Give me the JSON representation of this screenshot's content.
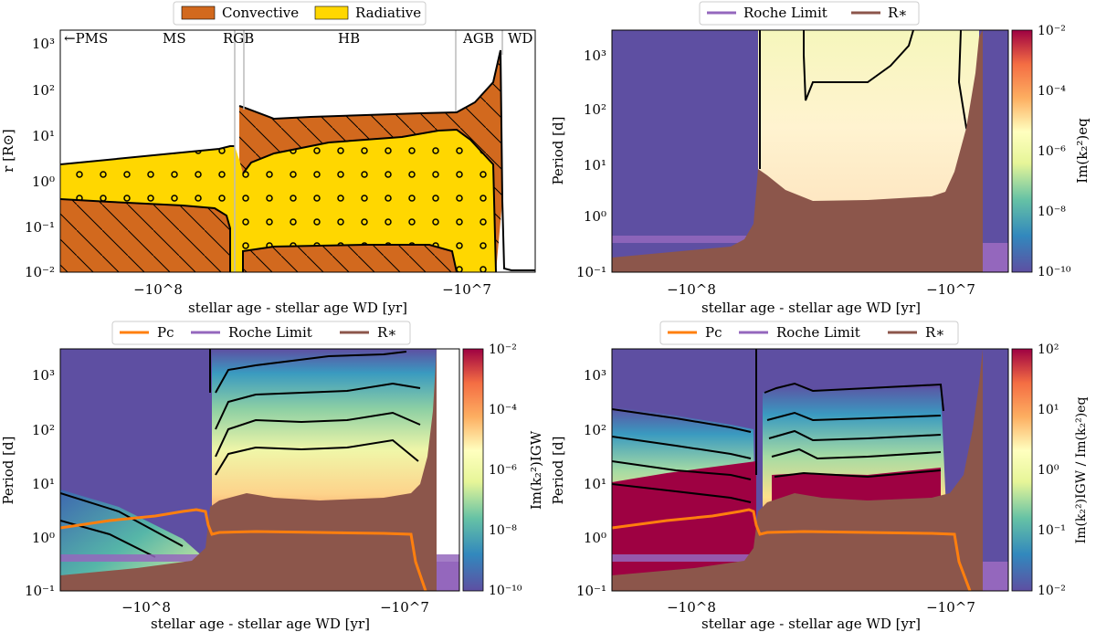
{
  "chart_data": [
    {
      "type": "area",
      "xlabel": "stellar age - stellar age WD [yr]",
      "ylabel": "r [R⊙]",
      "ylim": [
        0.01,
        3000
      ],
      "yscale": "log",
      "legend": {
        "position": "top",
        "entries": [
          "Convective",
          "Radiative"
        ]
      },
      "x_ticks": [
        "−10^8",
        "−10^7"
      ],
      "y_ticks": [
        "10⁻²",
        "10⁻¹",
        "10⁰",
        "10¹",
        "10²",
        "10³"
      ],
      "phases": [
        "←PMS",
        "MS",
        "RGB",
        "HB",
        "AGB",
        "WD"
      ],
      "colors": {
        "convective": "#d2691e",
        "radiative": "#ffd700"
      },
      "series": [
        {
          "name": "Radiative",
          "boundary": "outer",
          "values": [
            2.1,
            3.2,
            4.5,
            6.5,
            9.5,
            12,
            20,
            800,
            0.012
          ]
        },
        {
          "name": "Convective",
          "boundary": "core",
          "values": [
            0.35,
            0.3,
            0.26,
            0.1,
            0.15,
            0.13,
            0.01
          ]
        }
      ]
    },
    {
      "type": "heatmap",
      "xlabel": "stellar age - stellar age WD [yr]",
      "ylabel": "Period [d]",
      "ylim": [
        0.1,
        3000
      ],
      "yscale": "log",
      "legend": {
        "position": "top",
        "entries": [
          "Roche Limit",
          "R∗"
        ]
      },
      "colorbar": {
        "label": "Im(k₂²)eq",
        "ticks": [
          "10⁻²",
          "10⁻⁴",
          "10⁻⁶",
          "10⁻⁸",
          "10⁻¹⁰"
        ]
      },
      "x_ticks": [
        "−10^8",
        "−10^7"
      ],
      "y_ticks": [
        "10⁻¹",
        "10⁰",
        "10¹",
        "10²",
        "10³"
      ],
      "series": [
        {
          "name": "Roche Limit",
          "values": [
            0.45,
            0.45
          ]
        },
        {
          "name": "R∗",
          "values": [
            0.2,
            0.4,
            1.5,
            15,
            9,
            6,
            7,
            7.5,
            15,
            3000
          ]
        }
      ]
    },
    {
      "type": "heatmap",
      "xlabel": "stellar age - stellar age WD [yr]",
      "ylabel": "Period [d]",
      "ylim": [
        0.1,
        3000
      ],
      "yscale": "log",
      "legend": {
        "position": "top",
        "entries": [
          "Pc",
          "Roche Limit",
          "R∗"
        ]
      },
      "colorbar": {
        "label": "Im(k₂²)IGW",
        "ticks": [
          "10⁻²",
          "10⁻⁴",
          "10⁻⁶",
          "10⁻⁸",
          "10⁻¹⁰"
        ]
      },
      "x_ticks": [
        "−10^8",
        "−10^7"
      ],
      "y_ticks": [
        "10⁻¹",
        "10⁰",
        "10¹",
        "10²",
        "10³"
      ],
      "series": [
        {
          "name": "Pc",
          "values": [
            1.3,
            1.8,
            2.8,
            3.3,
            1.1,
            1.25,
            1.2,
            1.2,
            0.1
          ]
        },
        {
          "name": "Roche Limit",
          "values": [
            0.45,
            0.45
          ]
        },
        {
          "name": "R∗",
          "values": [
            0.2,
            0.4,
            1.5,
            25,
            12,
            8,
            9,
            9,
            20,
            3000
          ]
        }
      ]
    },
    {
      "type": "heatmap",
      "xlabel": "stellar age - stellar age WD [yr]",
      "ylabel": "Period [d]",
      "ylim": [
        0.1,
        3000
      ],
      "yscale": "log",
      "legend": {
        "position": "top",
        "entries": [
          "Pc",
          "Roche Limit",
          "R∗"
        ]
      },
      "colorbar": {
        "label": "Im(k₂²)IGW / Im(k₂²)eq",
        "ticks": [
          "10²",
          "10¹",
          "10⁰",
          "10⁻¹",
          "10⁻²"
        ]
      },
      "x_ticks": [
        "−10^8",
        "−10^7"
      ],
      "y_ticks": [
        "10⁻¹",
        "10⁰",
        "10¹",
        "10²",
        "10³"
      ],
      "series": [
        {
          "name": "Pc",
          "values": [
            1.3,
            1.8,
            2.8,
            3.3,
            1.1,
            1.25,
            1.2,
            1.2,
            0.1
          ]
        },
        {
          "name": "Roche Limit",
          "values": [
            0.45,
            0.45
          ]
        },
        {
          "name": "R∗",
          "values": [
            0.2,
            0.4,
            1.5,
            25,
            12,
            8,
            9,
            9,
            20,
            3000
          ]
        }
      ]
    }
  ]
}
